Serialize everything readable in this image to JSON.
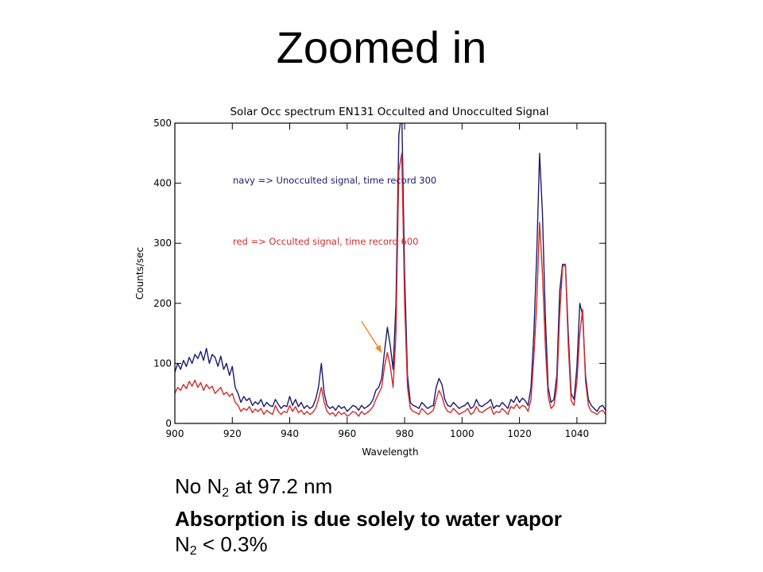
{
  "slide": {
    "title": "Zoomed in",
    "notes": {
      "line1_pre": "No N",
      "line1_sub": "2",
      "line1_post": " at 97.2 nm",
      "line2": "Absorption is due solely to water vapor",
      "line3_pre": "N",
      "line3_sub": "2",
      "line3_post": " < 0.3%"
    }
  },
  "colors": {
    "navy": "#1a1a6e",
    "red": "#d42a2a",
    "arrow": "#f08a2a",
    "axis": "#000000"
  },
  "chart_data": {
    "type": "line",
    "title": "Solar Occ spectrum EN131 Occulted and Unocculted Signal",
    "xlabel": "Wavelength",
    "ylabel": "Counts/sec",
    "xlim": [
      900,
      1050
    ],
    "ylim": [
      0,
      500
    ],
    "xticks": [
      900,
      920,
      940,
      960,
      980,
      1000,
      1020,
      1040
    ],
    "yticks": [
      0,
      100,
      200,
      300,
      400,
      500
    ],
    "grid": false,
    "annotations": [
      {
        "text": "navy => Unocculted signal, time record 300",
        "series": "Unocculted"
      },
      {
        "text": "red => Occulted signal, time record 600",
        "series": "Occulted"
      },
      {
        "type": "arrow",
        "from": [
          965,
          170
        ],
        "to": [
          972,
          118
        ]
      }
    ],
    "series": [
      {
        "name": "Unocculted",
        "color": "#1a1a6e",
        "x": [
          900,
          901,
          902,
          903,
          904,
          905,
          906,
          907,
          908,
          909,
          910,
          911,
          912,
          913,
          914,
          915,
          916,
          917,
          918,
          919,
          920,
          921,
          922,
          923,
          924,
          925,
          926,
          927,
          928,
          929,
          930,
          931,
          932,
          933,
          934,
          935,
          936,
          937,
          938,
          939,
          940,
          941,
          942,
          943,
          944,
          945,
          946,
          947,
          948,
          949,
          950,
          951,
          952,
          953,
          954,
          955,
          956,
          957,
          958,
          959,
          960,
          961,
          962,
          963,
          964,
          965,
          966,
          967,
          968,
          969,
          970,
          971,
          972,
          973,
          974,
          975,
          976,
          977,
          978,
          979,
          980,
          981,
          982,
          983,
          984,
          985,
          986,
          987,
          988,
          989,
          990,
          991,
          992,
          993,
          994,
          995,
          996,
          997,
          998,
          999,
          1000,
          1001,
          1002,
          1003,
          1004,
          1005,
          1006,
          1007,
          1008,
          1009,
          1010,
          1011,
          1012,
          1013,
          1014,
          1015,
          1016,
          1017,
          1018,
          1019,
          1020,
          1021,
          1022,
          1023,
          1024,
          1025,
          1026,
          1027,
          1028,
          1029,
          1030,
          1031,
          1032,
          1033,
          1034,
          1035,
          1036,
          1037,
          1038,
          1039,
          1040,
          1041,
          1042,
          1043,
          1044,
          1045,
          1046,
          1047,
          1048,
          1049,
          1050
        ],
        "y": [
          85,
          100,
          90,
          105,
          95,
          110,
          100,
          115,
          108,
          120,
          105,
          125,
          100,
          115,
          110,
          95,
          112,
          90,
          100,
          80,
          95,
          60,
          50,
          35,
          45,
          38,
          42,
          30,
          36,
          32,
          40,
          28,
          35,
          30,
          28,
          40,
          32,
          25,
          30,
          28,
          45,
          30,
          40,
          28,
          35,
          25,
          30,
          25,
          28,
          40,
          60,
          100,
          50,
          30,
          25,
          28,
          22,
          30,
          25,
          28,
          20,
          25,
          30,
          28,
          22,
          30,
          25,
          28,
          32,
          40,
          55,
          60,
          75,
          120,
          160,
          130,
          90,
          200,
          480,
          520,
          250,
          80,
          35,
          30,
          28,
          25,
          35,
          30,
          25,
          28,
          30,
          60,
          75,
          65,
          40,
          30,
          28,
          35,
          30,
          25,
          28,
          30,
          35,
          25,
          28,
          40,
          30,
          28,
          32,
          35,
          40,
          25,
          30,
          28,
          35,
          30,
          25,
          40,
          35,
          45,
          35,
          42,
          38,
          30,
          60,
          150,
          280,
          450,
          350,
          180,
          60,
          35,
          40,
          80,
          220,
          265,
          265,
          150,
          50,
          40,
          95,
          200,
          180,
          80,
          40,
          30,
          25,
          20,
          28,
          30,
          22
        ]
      },
      {
        "name": "Occulted",
        "color": "#d42a2a",
        "x": [
          900,
          901,
          902,
          903,
          904,
          905,
          906,
          907,
          908,
          909,
          910,
          911,
          912,
          913,
          914,
          915,
          916,
          917,
          918,
          919,
          920,
          921,
          922,
          923,
          924,
          925,
          926,
          927,
          928,
          929,
          930,
          931,
          932,
          933,
          934,
          935,
          936,
          937,
          938,
          939,
          940,
          941,
          942,
          943,
          944,
          945,
          946,
          947,
          948,
          949,
          950,
          951,
          952,
          953,
          954,
          955,
          956,
          957,
          958,
          959,
          960,
          961,
          962,
          963,
          964,
          965,
          966,
          967,
          968,
          969,
          970,
          971,
          972,
          973,
          974,
          975,
          976,
          977,
          978,
          979,
          980,
          981,
          982,
          983,
          984,
          985,
          986,
          987,
          988,
          989,
          990,
          991,
          992,
          993,
          994,
          995,
          996,
          997,
          998,
          999,
          1000,
          1001,
          1002,
          1003,
          1004,
          1005,
          1006,
          1007,
          1008,
          1009,
          1010,
          1011,
          1012,
          1013,
          1014,
          1015,
          1016,
          1017,
          1018,
          1019,
          1020,
          1021,
          1022,
          1023,
          1024,
          1025,
          1026,
          1027,
          1028,
          1029,
          1030,
          1031,
          1032,
          1033,
          1034,
          1035,
          1036,
          1037,
          1038,
          1039,
          1040,
          1041,
          1042,
          1043,
          1044,
          1045,
          1046,
          1047,
          1048,
          1049,
          1050
        ],
        "y": [
          50,
          60,
          55,
          65,
          58,
          70,
          62,
          72,
          60,
          68,
          55,
          65,
          58,
          62,
          50,
          55,
          60,
          48,
          52,
          45,
          50,
          35,
          30,
          20,
          25,
          22,
          28,
          18,
          24,
          20,
          25,
          15,
          22,
          18,
          15,
          30,
          20,
          15,
          20,
          18,
          30,
          20,
          28,
          18,
          22,
          15,
          20,
          15,
          18,
          25,
          40,
          60,
          35,
          20,
          15,
          18,
          12,
          20,
          15,
          18,
          12,
          15,
          20,
          18,
          12,
          20,
          15,
          18,
          22,
          28,
          40,
          50,
          60,
          95,
          118,
          95,
          60,
          150,
          420,
          450,
          200,
          60,
          25,
          20,
          18,
          15,
          25,
          20,
          15,
          18,
          22,
          40,
          55,
          45,
          28,
          20,
          18,
          25,
          20,
          15,
          18,
          20,
          25,
          15,
          18,
          28,
          20,
          18,
          22,
          25,
          28,
          15,
          20,
          18,
          25,
          20,
          15,
          28,
          25,
          32,
          25,
          30,
          28,
          20,
          40,
          110,
          200,
          335,
          250,
          130,
          45,
          25,
          30,
          60,
          180,
          260,
          265,
          130,
          38,
          30,
          70,
          150,
          190,
          70,
          30,
          20,
          18,
          15,
          20,
          22,
          15
        ]
      }
    ]
  }
}
